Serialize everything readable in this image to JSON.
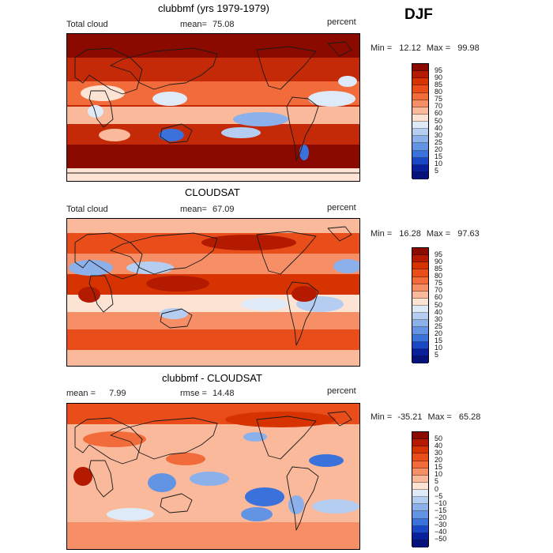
{
  "season": "DJF",
  "panels": [
    {
      "id": "model",
      "title": "clubbmf (yrs 1979-1979)",
      "left_label": "Total cloud",
      "mean_label": "mean=",
      "mean_value": "75.08",
      "units": "percent",
      "min_label": "Min =",
      "min_value": "12.12",
      "max_label": "Max =",
      "max_value": "99.98",
      "levels": [
        "95",
        "90",
        "85",
        "80",
        "75",
        "70",
        "60",
        "50",
        "40",
        "30",
        "25",
        "20",
        "15",
        "10",
        "5"
      ],
      "colors": [
        "#8b0a00",
        "#b31a00",
        "#d63300",
        "#e84d1a",
        "#f26b3a",
        "#f78f66",
        "#fbb99c",
        "#fde3d3",
        "#deeaf8",
        "#b4cdf0",
        "#8cb1ea",
        "#6394e3",
        "#3a71db",
        "#1947c6",
        "#0a1f9c",
        "#06117a"
      ]
    },
    {
      "id": "obs",
      "title": "CLOUDSAT",
      "left_label": "Total cloud",
      "mean_label": "mean=",
      "mean_value": "67.09",
      "units": "percent",
      "min_label": "Min =",
      "min_value": "16.28",
      "max_label": "Max =",
      "max_value": "97.63",
      "levels": [
        "95",
        "90",
        "85",
        "80",
        "75",
        "70",
        "60",
        "50",
        "40",
        "30",
        "25",
        "20",
        "15",
        "10",
        "5"
      ],
      "colors": [
        "#8b0a00",
        "#b31a00",
        "#d63300",
        "#e84d1a",
        "#f26b3a",
        "#f78f66",
        "#fbb99c",
        "#fde3d3",
        "#deeaf8",
        "#b4cdf0",
        "#8cb1ea",
        "#6394e3",
        "#3a71db",
        "#1947c6",
        "#0a1f9c",
        "#06117a"
      ]
    },
    {
      "id": "diff",
      "title": "clubbmf - CLOUDSAT",
      "left_label": "mean =",
      "left_value": "7.99",
      "mean_label": "rmse =",
      "mean_value": "14.48",
      "units": "percent",
      "min_label": "Min =",
      "min_value": "-35.21",
      "max_label": "Max =",
      "max_value": "65.28",
      "levels": [
        "50",
        "40",
        "30",
        "20",
        "15",
        "10",
        "5",
        "0",
        "−5",
        "−10",
        "−15",
        "−20",
        "−30",
        "−40",
        "−50"
      ],
      "colors": [
        "#8b0a00",
        "#b31a00",
        "#d63300",
        "#e84d1a",
        "#f26b3a",
        "#f78f66",
        "#fbb99c",
        "#fde3d3",
        "#deeaf8",
        "#b4cdf0",
        "#8cb1ea",
        "#6394e3",
        "#3a71db",
        "#1947c6",
        "#0a1f9c",
        "#06117a"
      ]
    }
  ]
}
